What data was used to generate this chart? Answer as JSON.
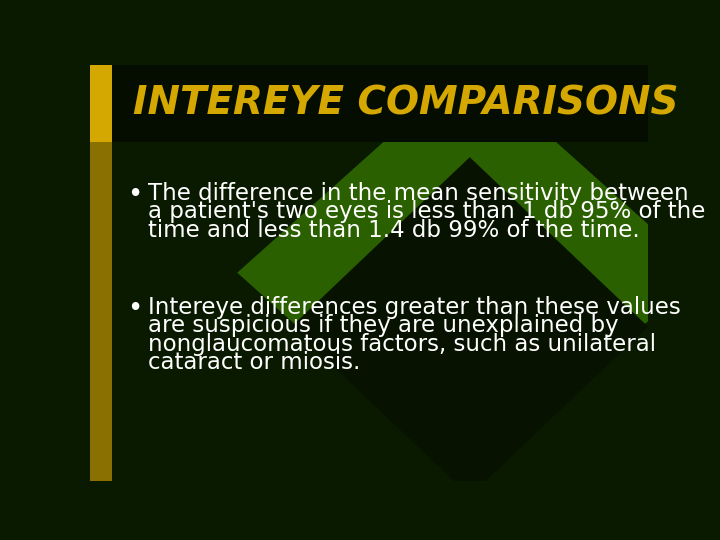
{
  "title": "INTEREYE COMPARISONS",
  "title_color": "#D4A800",
  "title_fontsize": 28,
  "bg_main": "#0A1A00",
  "bg_title_area": "#0A1A00",
  "bg_mid": "#1A4000",
  "left_bar_color_top": "#D4A800",
  "left_bar_color_bot": "#8A7000",
  "diamond_light": "#2A6000",
  "diamond_dark": "#071200",
  "bullet_color": "#FFFFFF",
  "bullet_fontsize": 16.5,
  "b1_lines": [
    "The difference in the mean sensitivity between",
    "a patient's two eyes is less than 1 db 95% of the",
    "time and less than 1.4 db 99% of the time."
  ],
  "b2_lines": [
    "Intereye differences greater than these values",
    "are suspicious if they are unexplained by",
    "nonglaucomatous factors, such as unilateral",
    "cataract or miosis."
  ]
}
